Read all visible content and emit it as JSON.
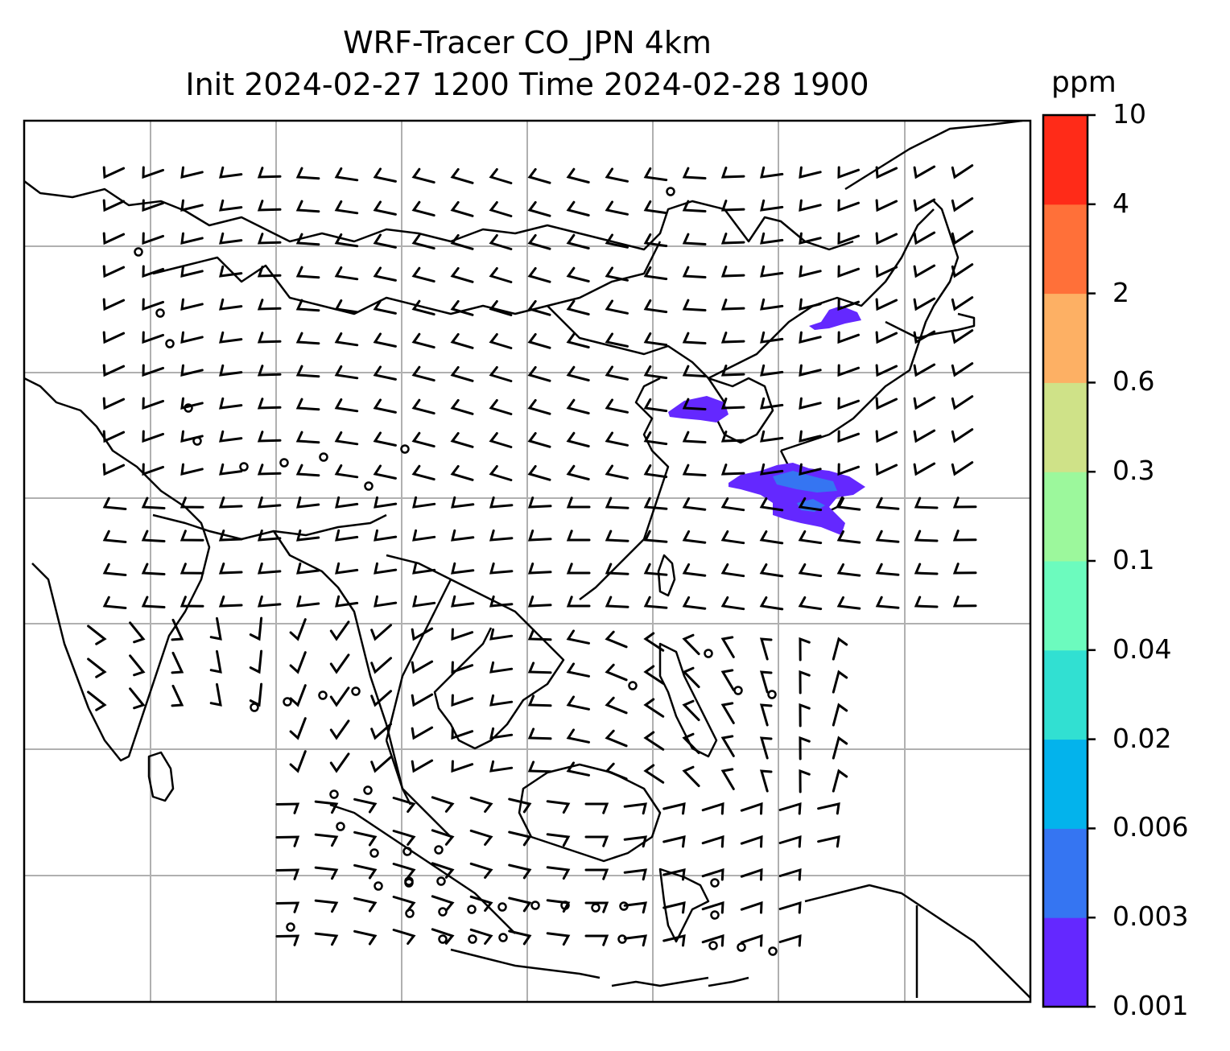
{
  "title_line1": "WRF-Tracer CO_JPN 4km",
  "title_line2": "Init 2024-02-27 1200 Time 2024-02-28 1900",
  "colorbar": {
    "unit": "ppm",
    "levels": [
      "0.001",
      "0.003",
      "0.006",
      "0.02",
      "0.04",
      "0.1",
      "0.3",
      "0.6",
      "2",
      "4",
      "10"
    ],
    "colors": [
      "#6428ff",
      "#3575f2",
      "#03b3ec",
      "#31e0d2",
      "#6cfbbe",
      "#9cf89c",
      "#cfe288",
      "#fdb064",
      "#ff7039",
      "#ff2b18"
    ]
  },
  "map": {
    "type": "wind-barbs with tracer contours",
    "region": "East / Southeast Asia",
    "gridlines": true,
    "tracer_color_low": "#6428ff",
    "tracer_color_mid": "#3575f2"
  }
}
